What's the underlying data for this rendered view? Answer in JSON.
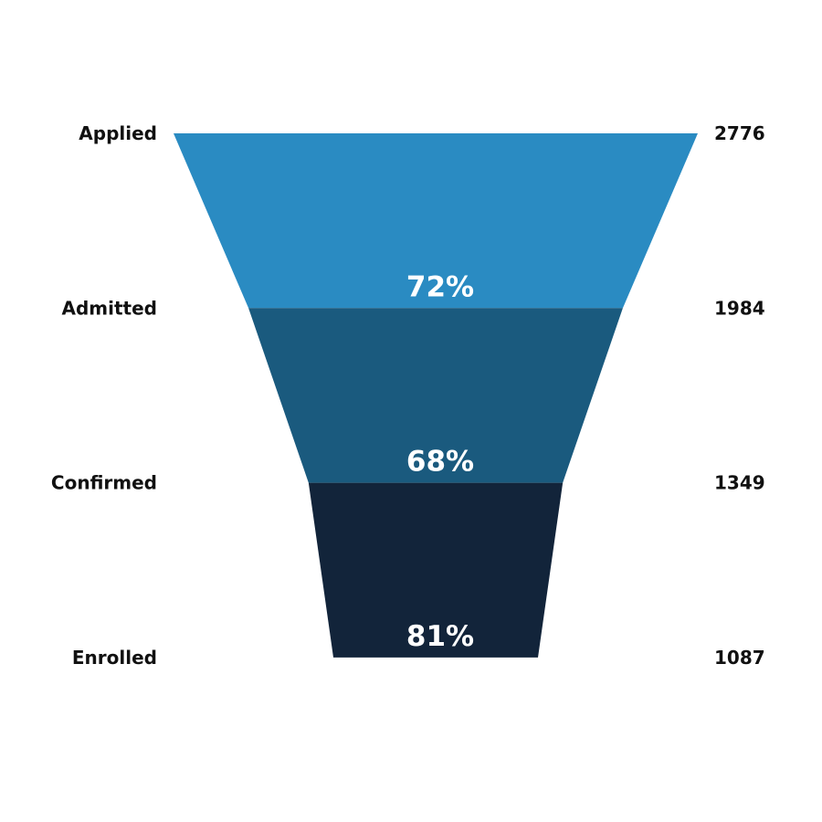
{
  "chart_data": {
    "type": "funnel",
    "categories": [
      "Applied",
      "Admitted",
      "Confirmed",
      "Enrolled"
    ],
    "values": [
      2776,
      1984,
      1349,
      1087
    ],
    "conversion_labels": [
      "72%",
      "68%",
      "81%"
    ],
    "segment_colors": [
      "#2a8bc2",
      "#1a5a7e",
      "#12243a"
    ],
    "value_labels_position": "right",
    "category_labels_position": "left"
  }
}
